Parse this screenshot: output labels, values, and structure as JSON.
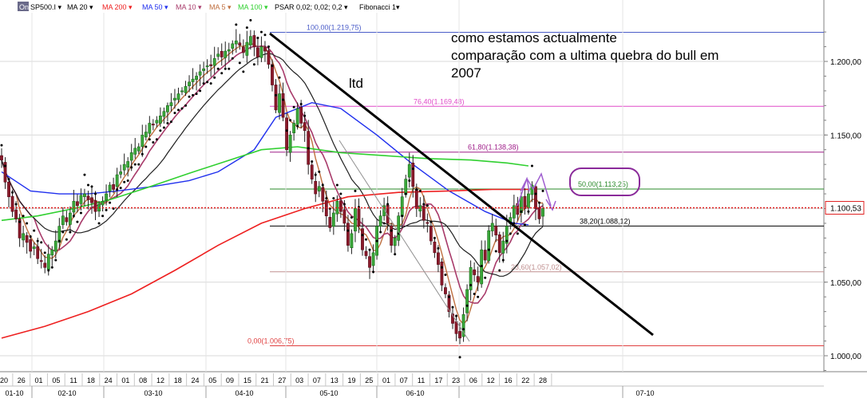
{
  "toolbar": {
    "symbol_badge": "On",
    "items": [
      {
        "label": "SP500.I ▾",
        "color": "#000000"
      },
      {
        "label": "MA 20 ▾",
        "color": "#000000"
      },
      {
        "label": "MA 200 ▾",
        "color": "#ee2020"
      },
      {
        "label": "MA 50 ▾",
        "color": "#2030ee"
      },
      {
        "label": "MA 10 ▾",
        "color": "#a83a6a"
      },
      {
        "label": "MA 5 ▾",
        "color": "#c07040"
      },
      {
        "label": "MA 100 ▾",
        "color": "#30d030"
      },
      {
        "label": "PSAR 0,02; 0,02; 0,2 ▾",
        "color": "#000000"
      },
      {
        "label": "Fibonacci 1▾",
        "color": "#000000"
      }
    ]
  },
  "annotation": {
    "lines": [
      "como estamos actualmente",
      "comparação com a ultima quebra do bull em",
      "2007"
    ],
    "trendline_label": "ltd"
  },
  "chart_data": {
    "type": "candlestick",
    "symbol": "SP500.I",
    "ylim": [
      990,
      1225
    ],
    "y_ticks": [
      {
        "value": 1000,
        "label": "1.000,00"
      },
      {
        "value": 1050,
        "label": "1.050,00"
      },
      {
        "value": 1100,
        "label": "1.100,00"
      },
      {
        "value": 1150,
        "label": "1.150,00"
      },
      {
        "value": 1200,
        "label": "1.200,00"
      }
    ],
    "last_price": {
      "value": 1100.53,
      "label": "1.100,53"
    },
    "x_day_labels": [
      "20",
      "26",
      "01",
      "05",
      "11",
      "18",
      "24",
      "01",
      "08",
      "12",
      "18",
      "24",
      "05",
      "09",
      "15",
      "21",
      "27",
      "03",
      "07",
      "13",
      "19",
      "25",
      "01",
      "07",
      "11",
      "17",
      "23",
      "06",
      "12",
      "16",
      "22",
      "28"
    ],
    "x_month_labels": [
      "01-10",
      "02-10",
      "03-10",
      "04-10",
      "05-10",
      "06-10",
      "07-10"
    ],
    "fibonacci": [
      {
        "label": "100,00(1.219,75)",
        "value": 1219.75,
        "color": "#4a5cc8"
      },
      {
        "label": "76,40(1.169,48)",
        "value": 1169.48,
        "color": "#e04ac8"
      },
      {
        "label": "61,80(1.138,38)",
        "value": 1138.38,
        "color": "#a0208a"
      },
      {
        "label": "50,00(1.113,25)",
        "value": 1113.25,
        "color": "#2a8a2a"
      },
      {
        "label": "38,20(1.088,12)",
        "value": 1088.12,
        "color": "#000000"
      },
      {
        "label": "23,60(1.057,02)",
        "value": 1057.02,
        "color": "#c09090"
      },
      {
        "label": "0,00(1.006,75)",
        "value": 1006.75,
        "color": "#e04040"
      }
    ],
    "close_series": [
      1133,
      1118,
      1108,
      1098,
      1093,
      1080,
      1083,
      1077,
      1071,
      1074,
      1066,
      1064,
      1060,
      1069,
      1072,
      1078,
      1088,
      1095,
      1091,
      1097,
      1105,
      1102,
      1109,
      1110,
      1106,
      1104,
      1098,
      1103,
      1105,
      1110,
      1116,
      1113,
      1123,
      1125,
      1130,
      1132,
      1138,
      1141,
      1142,
      1150,
      1152,
      1158,
      1157,
      1160,
      1163,
      1166,
      1170,
      1172,
      1175,
      1178,
      1180,
      1183,
      1186,
      1188,
      1190,
      1193,
      1195,
      1197,
      1197,
      1202,
      1205,
      1203,
      1207,
      1208,
      1212,
      1214,
      1211,
      1206,
      1213,
      1217,
      1210,
      1203,
      1210,
      1207,
      1198,
      1184,
      1167,
      1178,
      1162,
      1140,
      1150,
      1158,
      1168,
      1158,
      1153,
      1130,
      1120,
      1110,
      1115,
      1105,
      1095,
      1087,
      1097,
      1105,
      1098,
      1090,
      1075,
      1083,
      1100,
      1088,
      1072,
      1068,
      1060,
      1070,
      1088,
      1095,
      1102,
      1090,
      1075,
      1080,
      1095,
      1108,
      1120,
      1130,
      1115,
      1100,
      1102,
      1092,
      1090,
      1078,
      1070,
      1062,
      1048,
      1042,
      1030,
      1022,
      1015,
      1012,
      1028,
      1045,
      1060,
      1055,
      1050,
      1072,
      1065,
      1085,
      1090,
      1082,
      1070,
      1078,
      1088,
      1094,
      1102,
      1096,
      1108,
      1100,
      1110,
      1116,
      1100,
      1093,
      1100
    ]
  }
}
